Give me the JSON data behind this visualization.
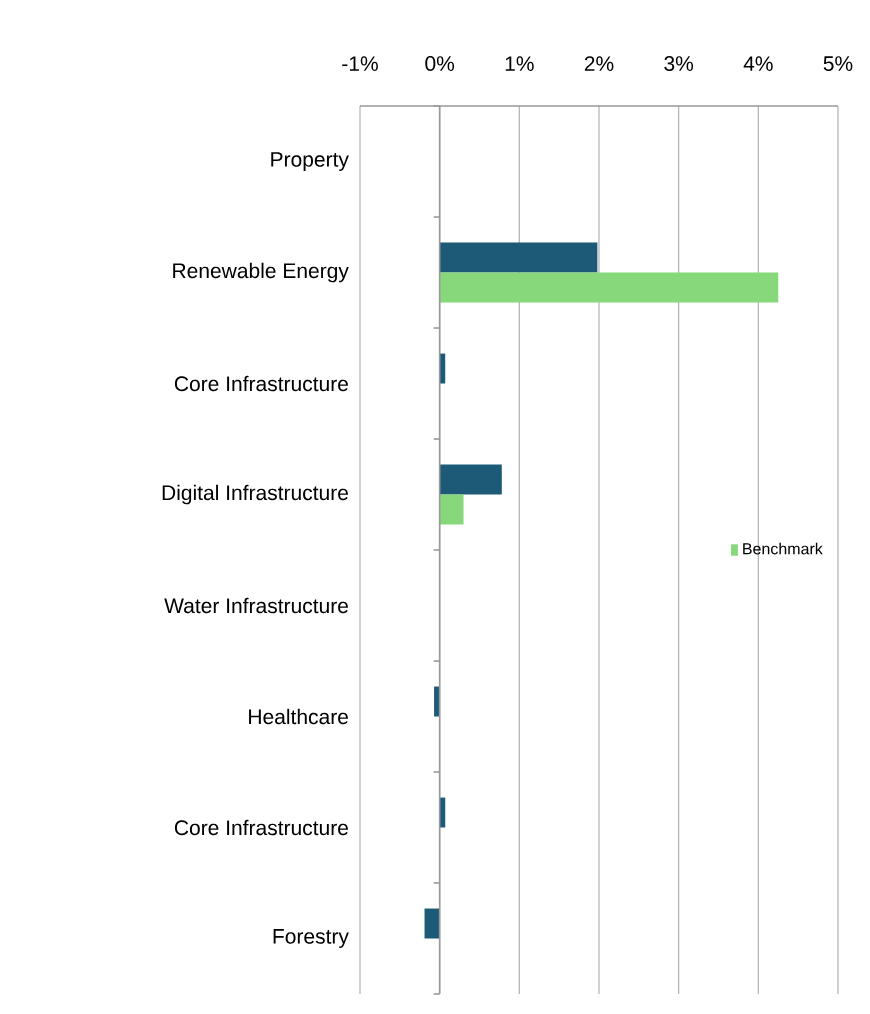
{
  "chart_data": {
    "type": "bar",
    "orientation": "horizontal",
    "categories": [
      "Property",
      "Renewable Energy",
      "Core Infrastructure",
      "Digital Infrastructure",
      "Water Infrastructure",
      "Healthcare",
      "Core Infrastructure",
      "Forestry"
    ],
    "series": [
      {
        "color": "#1d5a78",
        "values": [
          null,
          1.98,
          0.07,
          0.78,
          null,
          -0.07,
          0.07,
          -0.19
        ]
      },
      {
        "name": "Benchmark",
        "color": "#86d87a",
        "values": [
          null,
          4.25,
          null,
          0.3,
          null,
          null,
          null,
          null
        ]
      }
    ],
    "xlim": [
      -1,
      5
    ],
    "xticks": [
      {
        "value": -1,
        "label": "-1%"
      },
      {
        "value": 0,
        "label": "0%"
      },
      {
        "value": 1,
        "label": "1%"
      },
      {
        "value": 2,
        "label": "2%"
      },
      {
        "value": 3,
        "label": "3%"
      },
      {
        "value": 4,
        "label": "4%"
      },
      {
        "value": 5,
        "label": "5%"
      }
    ],
    "grid": "x",
    "legend": "right"
  }
}
